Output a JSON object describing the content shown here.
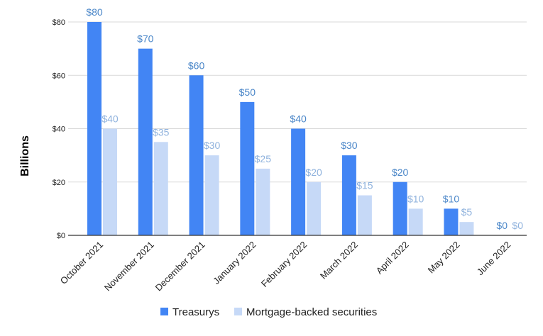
{
  "chart_data": {
    "type": "bar",
    "title": "",
    "xlabel": "",
    "ylabel": "Billions",
    "ylim": [
      0,
      80
    ],
    "y_ticks": [
      "$0",
      "$20",
      "$40",
      "$60",
      "$80"
    ],
    "y_tick_values": [
      0,
      20,
      40,
      60,
      80
    ],
    "grid": true,
    "legend_position": "bottom",
    "categories": [
      "October 2021",
      "November 2021",
      "December 2021",
      "January 2022",
      "February 2022",
      "March 2022",
      "April 2022",
      "May 2022",
      "June 2022"
    ],
    "series": [
      {
        "name": "Treasurys",
        "color": "#4285f4",
        "label_color": "#4a86c8",
        "values": [
          80,
          70,
          60,
          50,
          40,
          30,
          20,
          10,
          0
        ],
        "labels": [
          "$80",
          "$70",
          "$60",
          "$50",
          "$40",
          "$30",
          "$20",
          "$10",
          "$0"
        ]
      },
      {
        "name": "Mortgage-backed securities",
        "color": "#c6d9f7",
        "label_color": "#8fb2dd",
        "values": [
          40,
          35,
          30,
          25,
          20,
          15,
          10,
          5,
          0
        ],
        "labels": [
          "$40",
          "$35",
          "$30",
          "$25",
          "$20",
          "$15",
          "$10",
          "$5",
          "$0"
        ]
      }
    ]
  }
}
